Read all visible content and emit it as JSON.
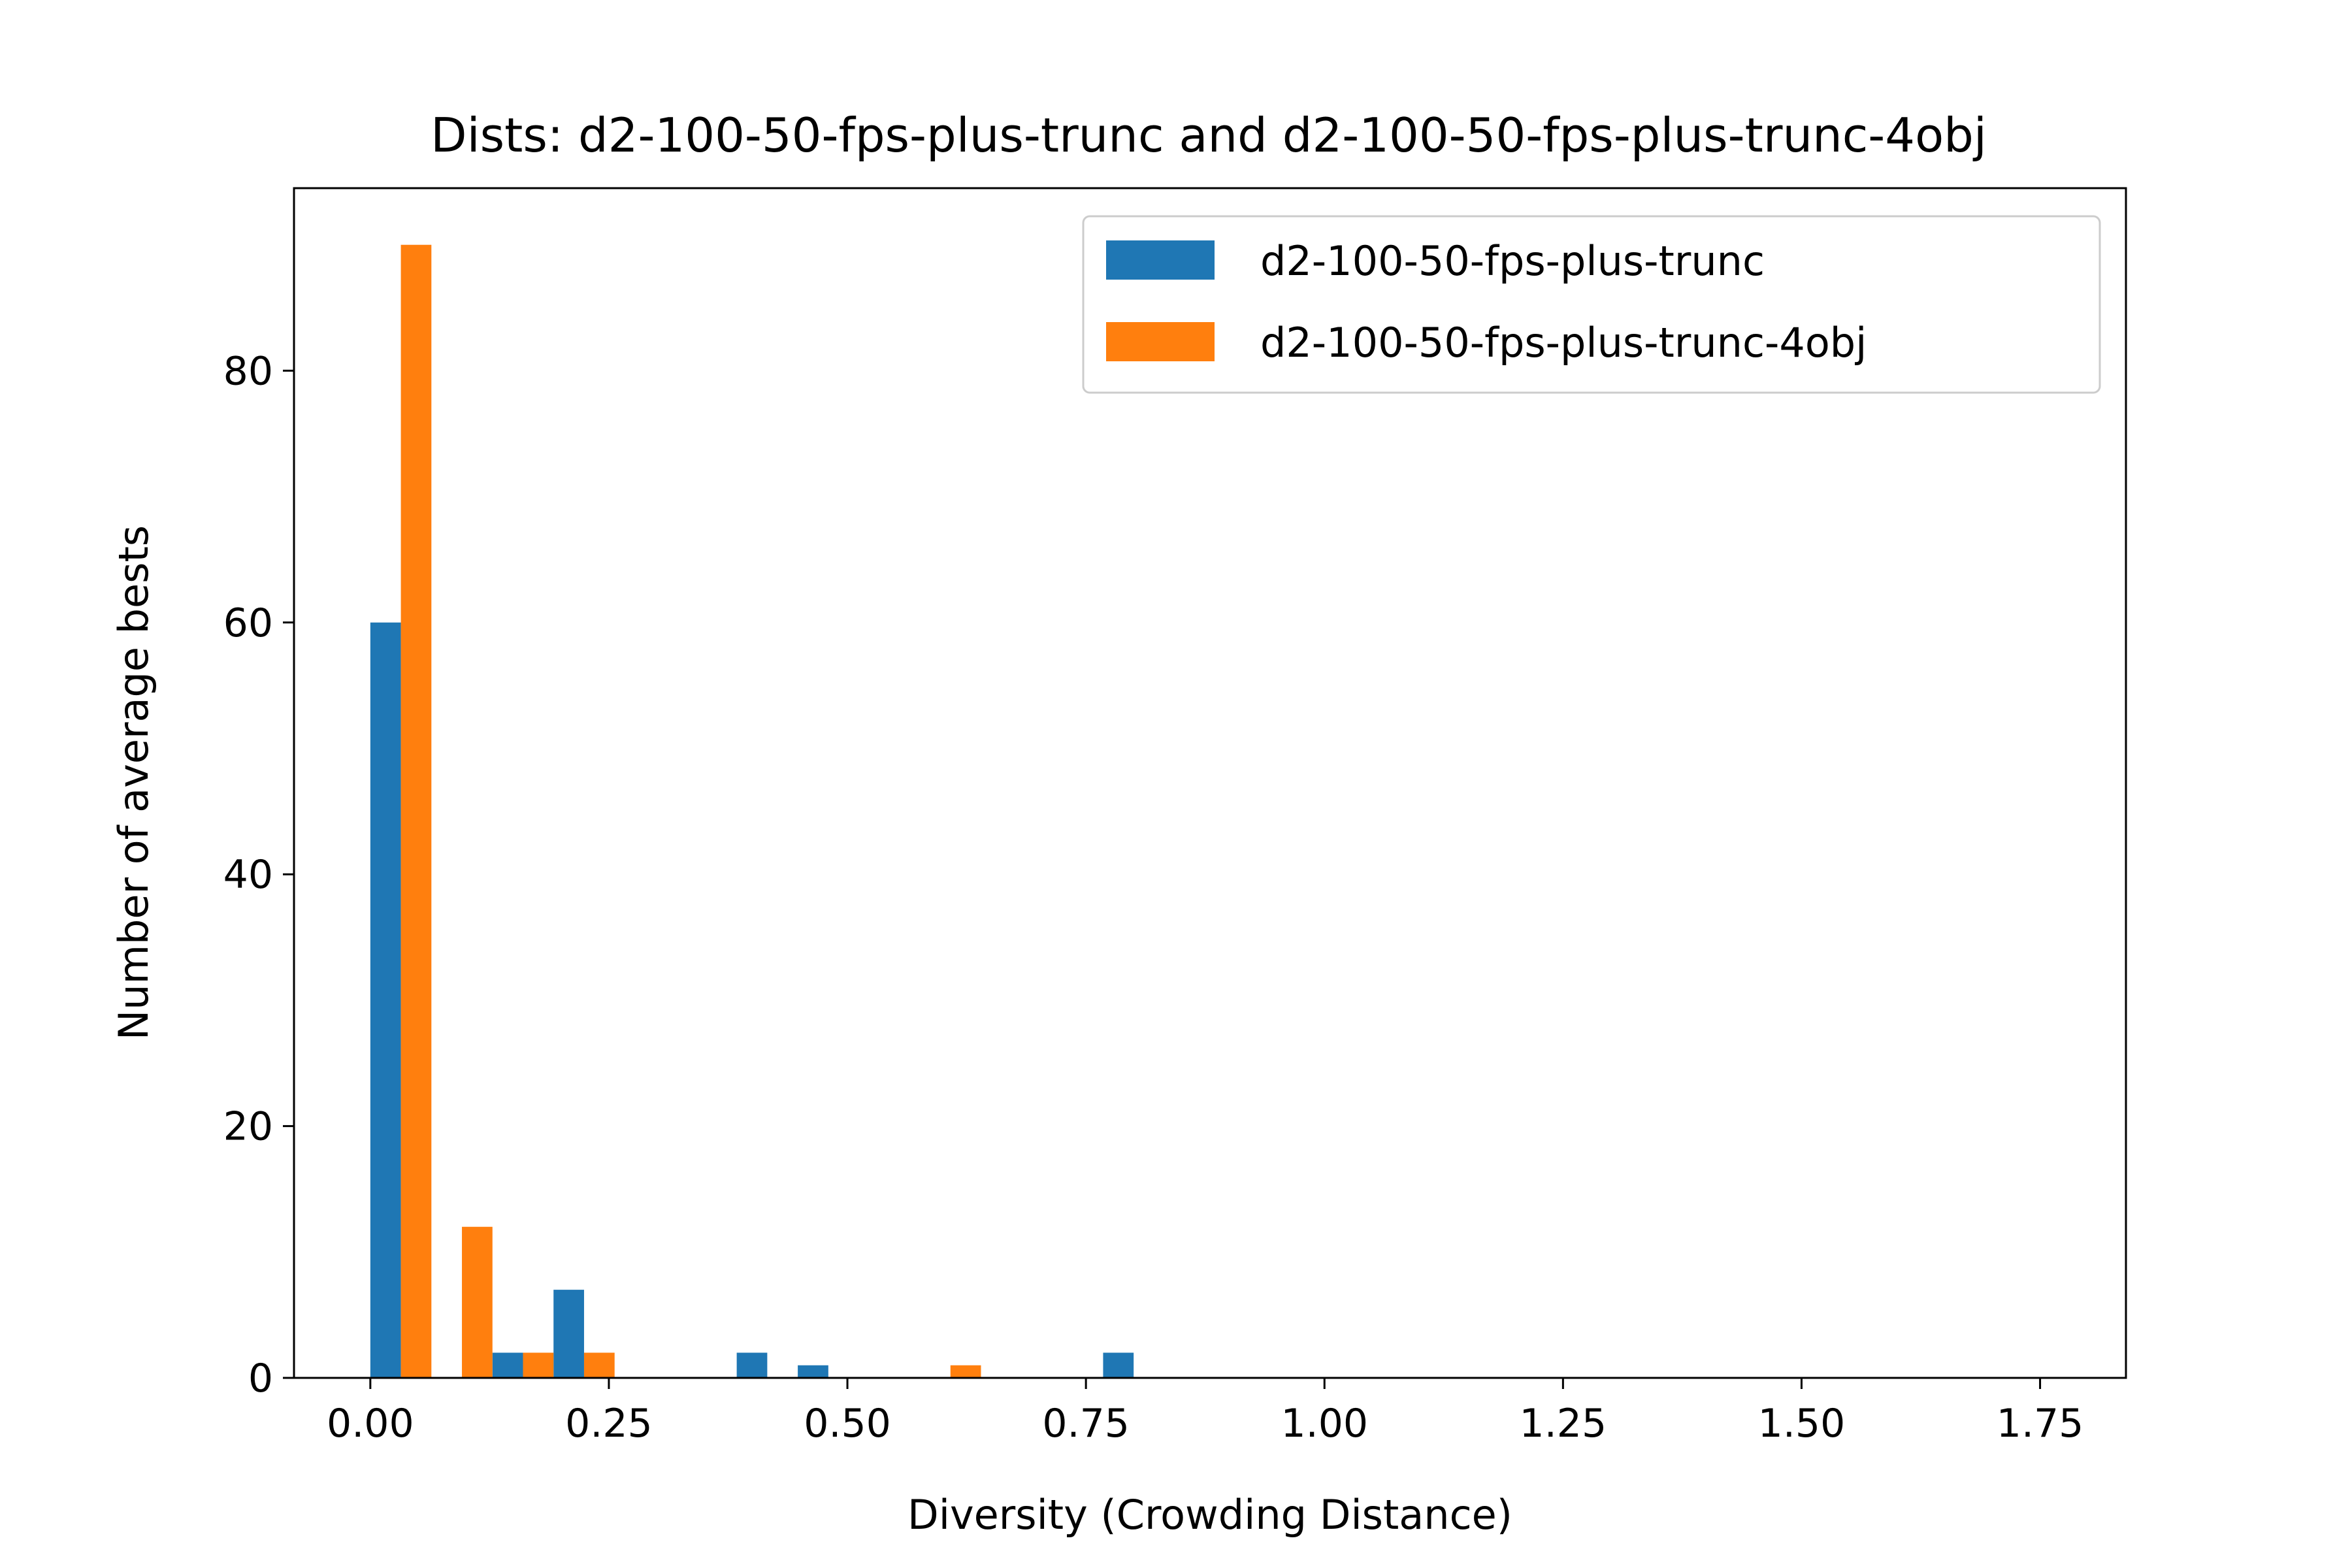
{
  "chart_data": {
    "type": "bar",
    "title": "Dists: d2-100-50-fps-plus-trunc and d2-100-50-fps-plus-trunc-4obj",
    "xlabel": "Diversity (Crowding Distance)",
    "ylabel": "Number of average bests",
    "xlim": [
      -0.08,
      1.84
    ],
    "ylim": [
      0,
      94.5
    ],
    "xticks": [
      "0.00",
      "0.25",
      "0.50",
      "0.75",
      "1.00",
      "1.25",
      "1.50",
      "1.75"
    ],
    "yticks": [
      "0",
      "20",
      "40",
      "60",
      "80"
    ],
    "legend_position": "top-right",
    "grid": false,
    "bin_width": 0.064,
    "bin_starts": [
      0.0,
      0.064,
      0.128,
      0.192,
      0.256,
      0.32,
      0.384,
      0.448,
      0.512,
      0.576,
      0.64,
      0.704,
      0.768
    ],
    "series": [
      {
        "name": "d2-100-50-fps-plus-trunc",
        "color": "#1f77b4",
        "values": [
          60,
          0,
          2,
          7,
          0,
          0,
          2,
          1,
          0,
          0,
          0,
          0,
          2
        ]
      },
      {
        "name": "d2-100-50-fps-plus-trunc-4obj",
        "color": "#ff7f0e",
        "values": [
          90,
          12,
          2,
          2,
          0,
          0,
          0,
          0,
          0,
          1,
          0,
          0,
          0
        ]
      }
    ]
  }
}
